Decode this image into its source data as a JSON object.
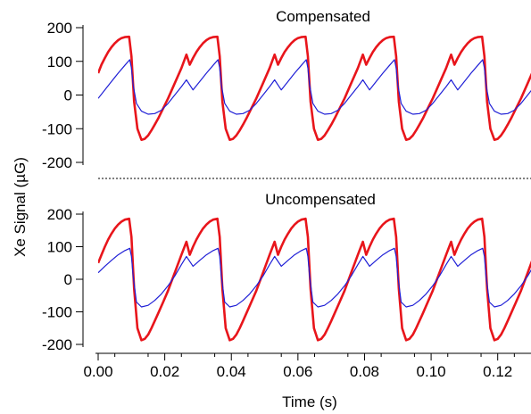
{
  "figure": {
    "ylabel": "Xe Signal (µG)",
    "xlabel": "Time (s)"
  },
  "chart_data": [
    {
      "type": "line",
      "title": "Compensated",
      "xlabel": "Time (s)",
      "ylabel": "Xe Signal (µG)",
      "xlim": [
        0.0,
        0.13
      ],
      "ylim": [
        -200,
        200
      ],
      "yticks": [
        "200",
        "100",
        "0",
        "-100",
        "-200"
      ],
      "period_s": 0.0265,
      "series": [
        {
          "color": "#e8151b",
          "x": [
            0.0,
            0.001,
            0.002,
            0.003,
            0.004,
            0.005,
            0.006,
            0.007,
            0.008,
            0.0093,
            0.01,
            0.0108,
            0.0118,
            0.013,
            0.014,
            0.015,
            0.016,
            0.017,
            0.018,
            0.0195,
            0.021,
            0.023,
            0.025,
            0.0265
          ],
          "y": [
            65,
            90,
            110,
            128,
            142,
            154,
            163,
            169,
            172,
            173,
            115,
            -20,
            -100,
            -133,
            -130,
            -120,
            -105,
            -88,
            -70,
            -40,
            -10,
            35,
            80,
            120
          ]
        },
        {
          "color": "#1f1fd6",
          "x": [
            0.0,
            0.002,
            0.004,
            0.006,
            0.008,
            0.0095,
            0.01,
            0.0105,
            0.0115,
            0.013,
            0.015,
            0.017,
            0.019,
            0.021,
            0.023,
            0.025,
            0.0265
          ],
          "y": [
            -10,
            15,
            40,
            65,
            88,
            105,
            80,
            30,
            -25,
            -48,
            -57,
            -55,
            -45,
            -25,
            0,
            25,
            45
          ]
        }
      ]
    },
    {
      "type": "line",
      "title": "Uncompensated",
      "xlabel": "Time (s)",
      "ylabel": "Xe Signal (µG)",
      "xlim": [
        0.0,
        0.13
      ],
      "ylim": [
        -200,
        200
      ],
      "yticks": [
        "200",
        "100",
        "0",
        "-100",
        "-200"
      ],
      "xticks": [
        "0.00",
        "0.02",
        "0.04",
        "0.06",
        "0.08",
        "0.10",
        "0.12"
      ],
      "period_s": 0.0265,
      "series": [
        {
          "color": "#e8151b",
          "x": [
            0.0,
            0.001,
            0.002,
            0.003,
            0.004,
            0.005,
            0.006,
            0.007,
            0.008,
            0.0093,
            0.01,
            0.0108,
            0.0118,
            0.013,
            0.014,
            0.015,
            0.016,
            0.017,
            0.018,
            0.0195,
            0.021,
            0.023,
            0.025,
            0.0265
          ],
          "y": [
            50,
            75,
            100,
            122,
            140,
            156,
            168,
            177,
            183,
            186,
            130,
            -30,
            -150,
            -187,
            -183,
            -170,
            -150,
            -128,
            -105,
            -70,
            -35,
            20,
            75,
            115
          ]
        },
        {
          "color": "#1f1fd6",
          "x": [
            0.0,
            0.002,
            0.004,
            0.006,
            0.008,
            0.0095,
            0.01,
            0.0105,
            0.0115,
            0.013,
            0.015,
            0.017,
            0.019,
            0.021,
            0.023,
            0.025,
            0.0265
          ],
          "y": [
            20,
            40,
            58,
            75,
            88,
            95,
            70,
            10,
            -70,
            -85,
            -80,
            -65,
            -45,
            -20,
            10,
            45,
            70
          ]
        }
      ]
    }
  ]
}
